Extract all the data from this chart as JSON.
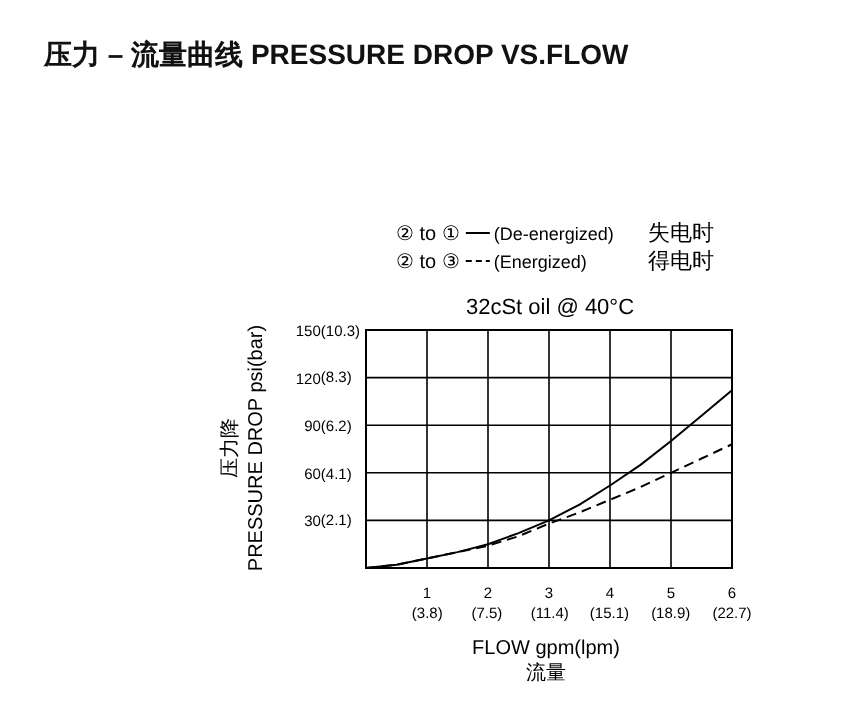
{
  "chart_data": {
    "type": "line",
    "title": "压力 – 流量曲线 PRESSURE DROP VS.FLOW",
    "subtitle": "32cSt oil @ 40°C",
    "xlabel": "FLOW gpm(lpm)\n流量",
    "ylabel": "压力降\nPRESSURE DROP psi(bar)",
    "xlim": [
      0,
      6
    ],
    "ylim": [
      0,
      150
    ],
    "xticks": [
      1,
      2,
      3,
      4,
      5,
      6
    ],
    "yticks": [
      30,
      60,
      90,
      120,
      150
    ],
    "x2lim": [
      0,
      22.7
    ],
    "x2ticks": [
      {
        "value": 3.8,
        "label": "(3.8)"
      },
      {
        "value": 7.5,
        "label": "(7.5)"
      },
      {
        "value": 11.4,
        "label": "(11.4)"
      },
      {
        "value": 15.1,
        "label": "(15.1)"
      },
      {
        "value": 18.9,
        "label": "(18.9)"
      },
      {
        "value": 22.7,
        "label": "(22.7)"
      }
    ],
    "y2lim": [
      0,
      10.3
    ],
    "y2ticks": [
      {
        "value": 2.1,
        "label": "(2.1)"
      },
      {
        "value": 4.1,
        "label": "(4.1)"
      },
      {
        "value": 6.2,
        "label": "(6.2)"
      },
      {
        "value": 8.3,
        "label": "(8.3)"
      },
      {
        "value": 10.3,
        "label": "(10.3)"
      }
    ],
    "annotations": [
      "② to ①",
      "失电时",
      "② to ③",
      "得电时"
    ],
    "x": [
      0,
      0.5,
      1,
      1.5,
      2,
      2.5,
      3,
      3.5,
      4,
      4.5,
      5,
      5.5,
      6
    ],
    "series": [
      {
        "name": "(De-energized)",
        "color": "#000000",
        "line_style": "solid",
        "values": [
          0,
          2,
          6,
          10,
          15,
          22,
          30,
          40,
          52,
          65,
          80,
          96,
          112
        ]
      },
      {
        "name": "(Energized)",
        "color": "#000000",
        "line_style": "dashed",
        "values": [
          0,
          2,
          6,
          10,
          14,
          20,
          28,
          35,
          43,
          51,
          60,
          69,
          78
        ]
      }
    ],
    "grid": true,
    "legend": "top",
    "marker": "none"
  }
}
